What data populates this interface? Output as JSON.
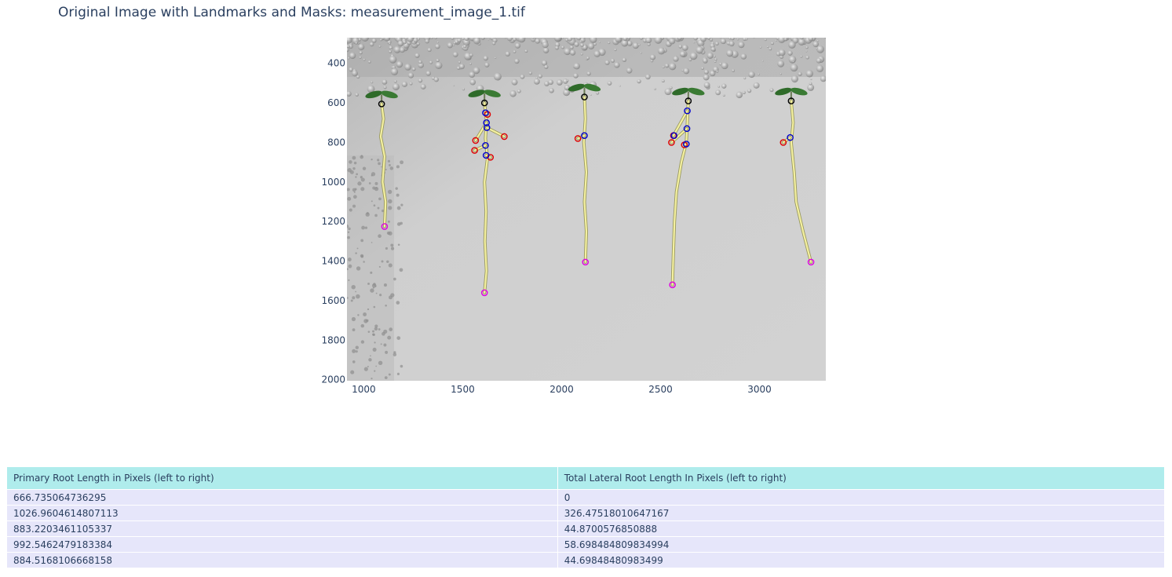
{
  "page": {
    "title": "Original Image with Landmarks and Masks: measurement_image_1.tif"
  },
  "chart_data": {
    "type": "scatter",
    "title": "Original Image with Landmarks and Masks: measurement_image_1.tif",
    "xlabel": "",
    "ylabel": "",
    "xlim": [
      915,
      3335
    ],
    "ylim": [
      2005,
      270
    ],
    "x_ticks": [
      1000,
      1500,
      2000,
      2500,
      3000
    ],
    "y_ticks": [
      400,
      600,
      800,
      1000,
      1200,
      1400,
      1600,
      1800,
      2000
    ],
    "grid": false,
    "y_axis_reversed": true,
    "background_image": "grayscale photo of five seedlings growing on agar plate",
    "colors": {
      "root_mask": "#f4f0a0",
      "start_marker": "#000000",
      "branch_marker": "#0000cc",
      "lateral_tip_marker": "#e00000",
      "primary_tip_marker": "#e000e0"
    },
    "roots": [
      {
        "primary_path": [
          [
            1090,
            605
          ],
          [
            1100,
            680
          ],
          [
            1085,
            770
          ],
          [
            1105,
            870
          ],
          [
            1095,
            1000
          ],
          [
            1110,
            1100
          ],
          [
            1105,
            1225
          ]
        ],
        "start": [
          1090,
          605
        ],
        "tip": [
          1105,
          1225
        ],
        "branches": [],
        "laterals": []
      },
      {
        "primary_path": [
          [
            1610,
            600
          ],
          [
            1620,
            690
          ],
          [
            1615,
            780
          ],
          [
            1625,
            880
          ],
          [
            1610,
            1000
          ],
          [
            1618,
            1150
          ],
          [
            1612,
            1300
          ],
          [
            1620,
            1450
          ],
          [
            1610,
            1560
          ]
        ],
        "start": [
          1610,
          600
        ],
        "tip": [
          1610,
          1560
        ],
        "branches": [
          [
            1615,
            650
          ],
          [
            1620,
            700
          ],
          [
            1622,
            725
          ],
          [
            1615,
            815
          ],
          [
            1618,
            865
          ]
        ],
        "laterals": [
          [
            [
              1615,
              650
            ],
            [
              1625,
              658
            ]
          ],
          [
            [
              1622,
              725
            ],
            [
              1710,
              770
            ]
          ],
          [
            [
              1620,
              700
            ],
            [
              1565,
              790
            ]
          ],
          [
            [
              1615,
              815
            ],
            [
              1560,
              840
            ]
          ],
          [
            [
              1618,
              865
            ],
            [
              1640,
              875
            ]
          ]
        ]
      },
      {
        "primary_path": [
          [
            2115,
            570
          ],
          [
            2120,
            680
          ],
          [
            2112,
            800
          ],
          [
            2125,
            950
          ],
          [
            2115,
            1100
          ],
          [
            2125,
            1250
          ],
          [
            2120,
            1405
          ]
        ],
        "start": [
          2115,
          570
        ],
        "tip": [
          2120,
          1405
        ],
        "branches": [
          [
            2115,
            765
          ]
        ],
        "laterals": [
          [
            [
              2115,
              765
            ],
            [
              2082,
              780
            ]
          ]
        ]
      },
      {
        "primary_path": [
          [
            2640,
            590
          ],
          [
            2635,
            700
          ],
          [
            2630,
            800
          ],
          [
            2605,
            900
          ],
          [
            2580,
            1050
          ],
          [
            2570,
            1200
          ],
          [
            2565,
            1350
          ],
          [
            2560,
            1520
          ]
        ],
        "start": [
          2640,
          590
        ],
        "tip": [
          2560,
          1520
        ],
        "branches": [
          [
            2635,
            640
          ],
          [
            2633,
            730
          ],
          [
            2568,
            765
          ],
          [
            2630,
            808
          ]
        ],
        "laterals": [
          [
            [
              2635,
              640
            ],
            [
              2565,
              765
            ]
          ],
          [
            [
              2633,
              730
            ],
            [
              2555,
              800
            ]
          ],
          [
            [
              2630,
              808
            ],
            [
              2620,
              812
            ]
          ]
        ]
      },
      {
        "primary_path": [
          [
            3160,
            590
          ],
          [
            3170,
            700
          ],
          [
            3160,
            800
          ],
          [
            3175,
            950
          ],
          [
            3185,
            1100
          ],
          [
            3220,
            1250
          ],
          [
            3260,
            1405
          ]
        ],
        "start": [
          3160,
          590
        ],
        "tip": [
          3260,
          1405
        ],
        "branches": [
          [
            3155,
            775
          ]
        ],
        "laterals": [
          [
            [
              3155,
              775
            ],
            [
              3120,
              800
            ]
          ]
        ]
      }
    ],
    "table": {
      "columns": [
        "Primary Root Length in Pixels (left to right)",
        "Total Lateral Root Length In Pixels (left to right)"
      ],
      "rows": [
        [
          "666.735064736295",
          "0"
        ],
        [
          "1026.9604614807113",
          "326.47518010647167"
        ],
        [
          "883.2203461105337",
          "44.8700576850888"
        ],
        [
          "992.5462479183384",
          "58.698484809834994"
        ],
        [
          "884.5168106668158",
          "44.69848480983499"
        ]
      ]
    }
  }
}
